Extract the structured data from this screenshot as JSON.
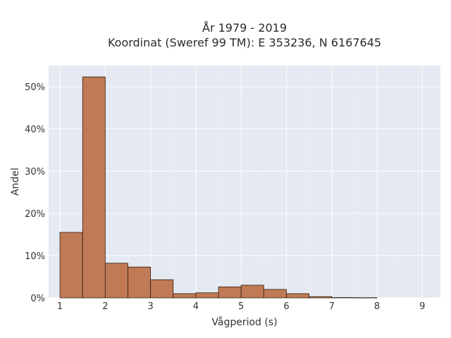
{
  "chart_data": {
    "type": "histogram",
    "title_line1": "År 1979 - 2019",
    "title_line2": "Koordinat (Sweref 99 TM): E 353236, N 6167645",
    "xlabel": "Vågperiod (s)",
    "ylabel": "Andel",
    "xlim": [
      0.75,
      9.4
    ],
    "ylim": [
      0,
      0.55
    ],
    "x_ticks": [
      1,
      2,
      3,
      4,
      5,
      6,
      7,
      8,
      9
    ],
    "y_ticks": [
      {
        "value": 0,
        "label": "0%"
      },
      {
        "value": 0.1,
        "label": "10%"
      },
      {
        "value": 0.2,
        "label": "20%"
      },
      {
        "value": 0.3,
        "label": "30%"
      },
      {
        "value": 0.4,
        "label": "40%"
      },
      {
        "value": 0.5,
        "label": "50%"
      }
    ],
    "grid": true,
    "bar_color": "#c07a55",
    "bar_edge_color": "#2f1e12",
    "bins": [
      {
        "x0": 1.0,
        "x1": 1.5,
        "value": 0.155
      },
      {
        "x0": 1.5,
        "x1": 2.0,
        "value": 0.523
      },
      {
        "x0": 2.0,
        "x1": 2.5,
        "value": 0.082
      },
      {
        "x0": 2.5,
        "x1": 3.0,
        "value": 0.073
      },
      {
        "x0": 3.0,
        "x1": 3.5,
        "value": 0.043
      },
      {
        "x0": 3.5,
        "x1": 4.0,
        "value": 0.01
      },
      {
        "x0": 4.0,
        "x1": 4.5,
        "value": 0.012
      },
      {
        "x0": 4.5,
        "x1": 5.0,
        "value": 0.026
      },
      {
        "x0": 5.0,
        "x1": 5.5,
        "value": 0.03
      },
      {
        "x0": 5.5,
        "x1": 6.0,
        "value": 0.02
      },
      {
        "x0": 6.0,
        "x1": 6.5,
        "value": 0.01
      },
      {
        "x0": 6.5,
        "x1": 7.0,
        "value": 0.003
      },
      {
        "x0": 7.0,
        "x1": 7.5,
        "value": 0.0008
      },
      {
        "x0": 7.5,
        "x1": 8.0,
        "value": 0.0005
      }
    ]
  }
}
